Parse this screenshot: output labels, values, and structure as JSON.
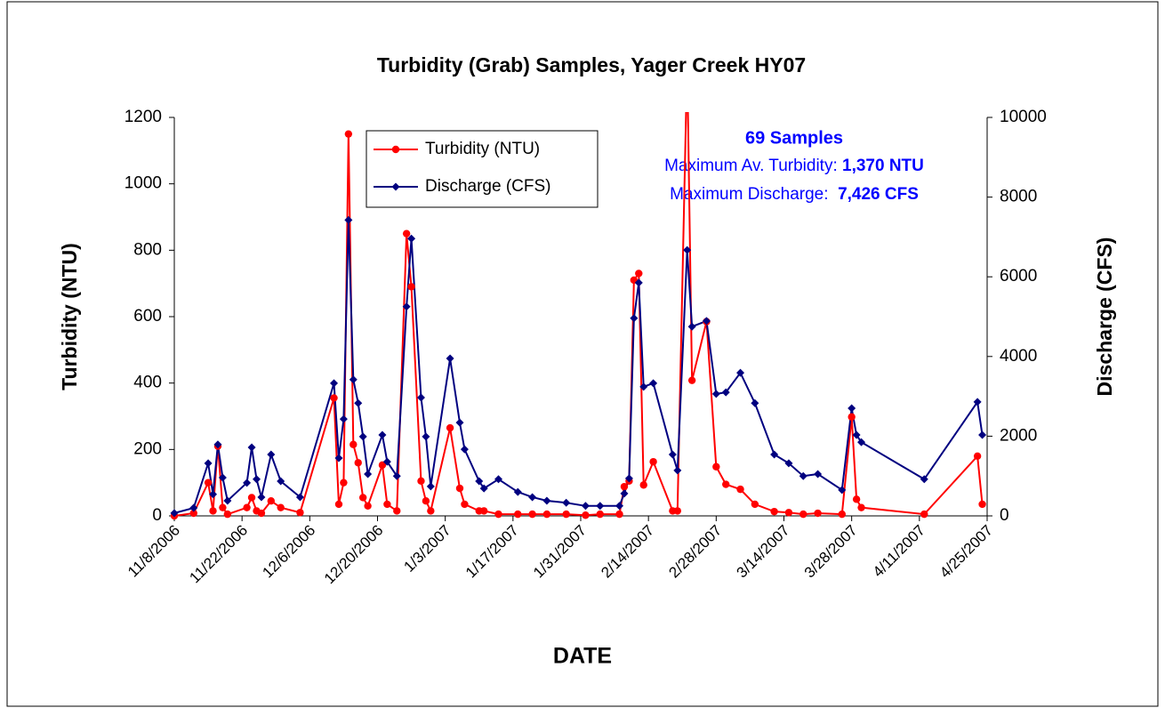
{
  "chart_data": {
    "type": "line",
    "title": "Turbidity (Grab) Samples, Yager Creek HY07",
    "x_label": "DATE",
    "y_label": "Turbidity (NTU)",
    "y2_label": "Discharge (CFS)",
    "x": [
      "11/8/2006",
      "11/12/2006",
      "11/15/2006",
      "11/16/2006",
      "11/17/2006",
      "11/18/2006",
      "11/19/2006",
      "11/23/2006",
      "11/24/2006",
      "11/25/2006",
      "11/26/2006",
      "11/28/2006",
      "11/30/2006",
      "12/4/2006",
      "12/11/2006",
      "12/12/2006",
      "12/13/2006",
      "12/14/2006",
      "12/15/2006",
      "12/16/2006",
      "12/17/2006",
      "12/18/2006",
      "12/21/2006",
      "12/22/2006",
      "12/24/2006",
      "12/26/2006",
      "12/27/2006",
      "12/29/2006",
      "12/30/2006",
      "12/31/2006",
      "1/4/2007",
      "1/6/2007",
      "1/7/2007",
      "1/10/2007",
      "1/11/2007",
      "1/14/2007",
      "1/18/2007",
      "1/21/2007",
      "1/24/2007",
      "1/28/2007",
      "2/1/2007",
      "2/4/2007",
      "2/8/2007",
      "2/9/2007",
      "2/10/2007",
      "2/11/2007",
      "2/12/2007",
      "2/13/2007",
      "2/15/2007",
      "2/19/2007",
      "2/20/2007",
      "2/22/2007",
      "2/23/2007",
      "2/26/2007",
      "2/28/2007",
      "3/2/2007",
      "3/5/2007",
      "3/8/2007",
      "3/12/2007",
      "3/15/2007",
      "3/18/2007",
      "3/21/2007",
      "3/26/2007",
      "3/28/2007",
      "3/29/2007",
      "3/30/2007",
      "4/12/2007",
      "4/23/2007",
      "4/24/2007"
    ],
    "series": [
      {
        "name": "Turbidity (NTU)",
        "color": "#ff0000",
        "marker": "circle",
        "axis": "y",
        "values": [
          0,
          8,
          100,
          15,
          210,
          25,
          5,
          25,
          55,
          15,
          8,
          45,
          25,
          10,
          355,
          35,
          100,
          1150,
          215,
          160,
          55,
          30,
          153,
          35,
          15,
          850,
          690,
          105,
          45,
          15,
          265,
          83,
          35,
          15,
          15,
          5,
          5,
          5,
          5,
          5,
          2,
          5,
          5,
          88,
          105,
          710,
          730,
          93,
          163,
          15,
          15,
          1370,
          408,
          585,
          148,
          95,
          80,
          35,
          13,
          10,
          5,
          8,
          5,
          298,
          50,
          25,
          5,
          180,
          35
        ]
      },
      {
        "name": "Discharge (CFS)",
        "color": "#000080",
        "marker": "diamond",
        "axis": "y2",
        "values": [
          70,
          200,
          1320,
          540,
          1790,
          960,
          380,
          830,
          1720,
          920,
          470,
          1540,
          870,
          470,
          3330,
          1450,
          2430,
          7426,
          3420,
          2830,
          1990,
          1050,
          2030,
          1360,
          1000,
          5250,
          6960,
          2970,
          1990,
          740,
          3950,
          2340,
          1670,
          870,
          690,
          920,
          600,
          470,
          380,
          330,
          250,
          250,
          250,
          560,
          940,
          4960,
          5850,
          3240,
          3330,
          1540,
          1140,
          6670,
          4750,
          4890,
          3060,
          3100,
          3590,
          2830,
          1540,
          1320,
          1000,
          1050,
          650,
          2700,
          2030,
          1850,
          920,
          2860,
          2030
        ]
      }
    ],
    "xlim": [
      "11/8/2006",
      "4/25/2007"
    ],
    "xticks": [
      "11/8/2006",
      "11/22/2006",
      "12/6/2006",
      "12/20/2006",
      "1/3/2007",
      "1/17/2007",
      "1/31/2007",
      "2/14/2007",
      "2/28/2007",
      "3/14/2007",
      "3/28/2007",
      "4/11/2007",
      "4/25/2007"
    ],
    "ylim": [
      0,
      1200
    ],
    "yticks": [
      0,
      200,
      400,
      600,
      800,
      1000,
      1200
    ],
    "y2lim": [
      0,
      10000
    ],
    "y2ticks": [
      0,
      2000,
      4000,
      6000,
      8000,
      10000
    ],
    "grid": false,
    "legend": "top",
    "annotations": [
      {
        "text": "69 Samples"
      },
      {
        "text": "Maximum Av. Turbidity: ",
        "value": "1,370 NTU"
      },
      {
        "text": "Maximum Discharge:  ",
        "value": "7,426 CFS"
      }
    ]
  }
}
